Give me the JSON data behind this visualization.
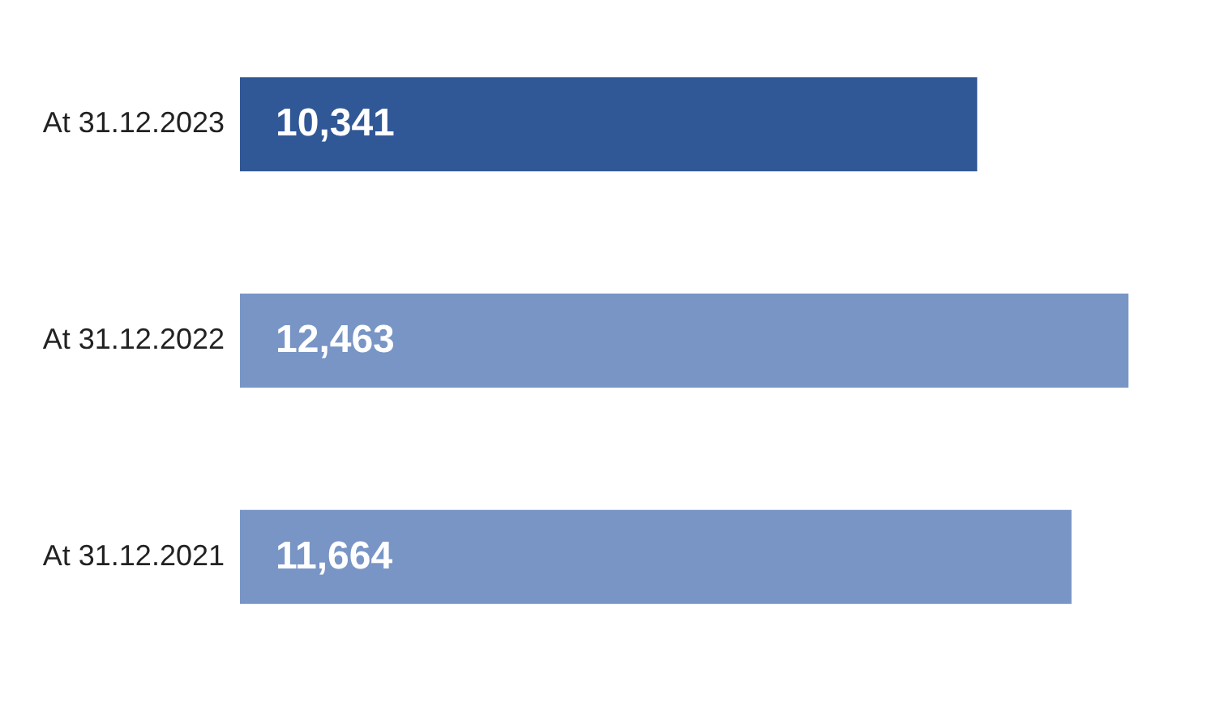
{
  "chart_data": {
    "type": "bar",
    "orientation": "horizontal",
    "categories": [
      "At 31.12.2023",
      "At 31.12.2022",
      "At 31.12.2021"
    ],
    "values": [
      10341,
      12463,
      11664
    ],
    "value_labels": [
      "10,341",
      "12,463",
      "11,664"
    ],
    "colors": [
      "#315896",
      "#7895c5",
      "#7895c5"
    ]
  }
}
